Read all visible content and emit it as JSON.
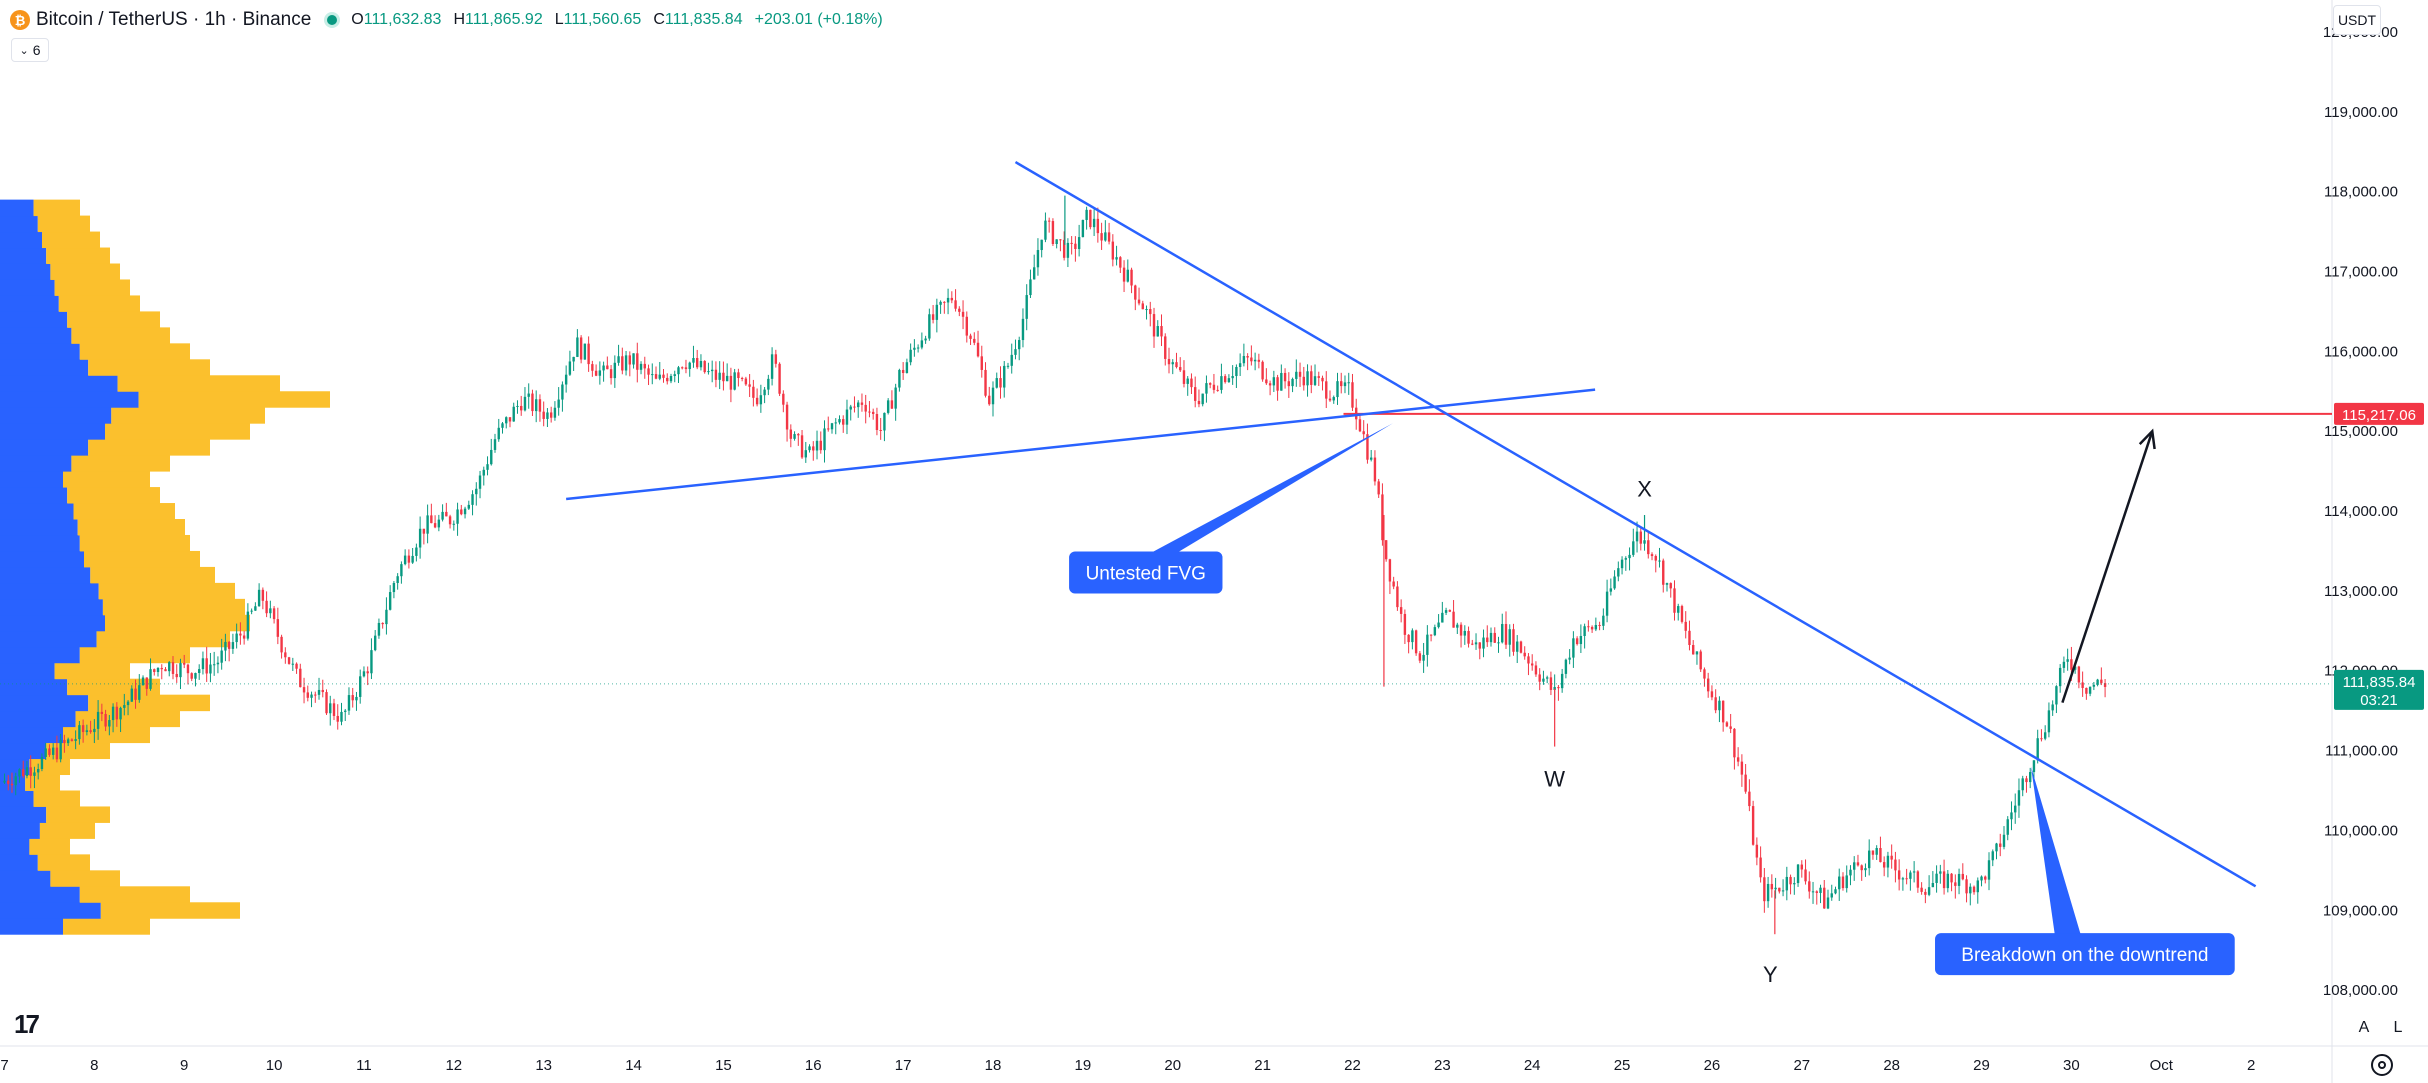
{
  "header": {
    "symbol": "Bitcoin / TetherUS · 1h · Binance",
    "open_label": "O",
    "open": "111,632.83",
    "high_label": "H",
    "high": "111,865.92",
    "low_label": "L",
    "low": "111,560.65",
    "close_label": "C",
    "close": "111,835.84",
    "change": "+203.01 (+0.18%)",
    "indicator_count": "6",
    "currency": "USDT"
  },
  "bottom_buttons": {
    "auto": "A",
    "log": "L"
  },
  "colors": {
    "up": "#089981",
    "down": "#f23645",
    "trendline": "#2962ff",
    "resistance": "#f23645",
    "volume_up": "#2962ff",
    "volume_down": "#fbc02d",
    "label_bg": "#2962ff"
  },
  "chart_data": {
    "type": "candlestick",
    "y_axis": {
      "ticks": [
        "108,000.00",
        "109,000.00",
        "110,000.00",
        "111,000.00",
        "112,000.00",
        "113,000.00",
        "114,000.00",
        "115,000.00",
        "116,000.00",
        "117,000.00",
        "118,000.00",
        "119,000.00",
        "120,000.00"
      ],
      "tick_values": [
        108000,
        109000,
        110000,
        111000,
        112000,
        113000,
        114000,
        115000,
        116000,
        117000,
        118000,
        119000,
        120000
      ],
      "range": [
        107300,
        120400
      ]
    },
    "x_axis": {
      "labels": [
        "7",
        "8",
        "9",
        "10",
        "11",
        "12",
        "13",
        "14",
        "15",
        "16",
        "17",
        "18",
        "19",
        "20",
        "21",
        "22",
        "23",
        "24",
        "25",
        "26",
        "27",
        "28",
        "29",
        "30",
        "Oct",
        "2"
      ],
      "day_index": [
        0,
        1,
        2,
        3,
        4,
        5,
        6,
        7,
        8,
        9,
        10,
        11,
        12,
        13,
        14,
        15,
        16,
        17,
        18,
        19,
        20,
        21,
        22,
        23,
        24,
        25
      ],
      "range": [
        -0.05,
        25.9
      ]
    },
    "price_path": [
      [
        0.0,
        110600
      ],
      [
        0.5,
        110900
      ],
      [
        1.0,
        111300
      ],
      [
        1.4,
        111600
      ],
      [
        1.8,
        112100
      ],
      [
        2.1,
        112000
      ],
      [
        2.4,
        112100
      ],
      [
        2.7,
        112500
      ],
      [
        2.9,
        112950
      ],
      [
        3.1,
        112400
      ],
      [
        3.3,
        111900
      ],
      [
        3.5,
        111700
      ],
      [
        3.8,
        111400
      ],
      [
        4.1,
        112100
      ],
      [
        4.4,
        113200
      ],
      [
        4.7,
        113800
      ],
      [
        5.0,
        113900
      ],
      [
        5.3,
        114300
      ],
      [
        5.5,
        114900
      ],
      [
        5.8,
        115400
      ],
      [
        6.1,
        115200
      ],
      [
        6.4,
        116100
      ],
      [
        6.7,
        115700
      ],
      [
        7.0,
        115900
      ],
      [
        7.3,
        115600
      ],
      [
        7.6,
        115900
      ],
      [
        7.9,
        115700
      ],
      [
        8.2,
        115600
      ],
      [
        8.4,
        115400
      ],
      [
        8.6,
        115900
      ],
      [
        8.8,
        114900
      ],
      [
        9.0,
        114700
      ],
      [
        9.3,
        115100
      ],
      [
        9.6,
        115400
      ],
      [
        9.8,
        115000
      ],
      [
        10.0,
        115700
      ],
      [
        10.3,
        116300
      ],
      [
        10.6,
        116700
      ],
      [
        10.8,
        116200
      ],
      [
        11.0,
        115400
      ],
      [
        11.2,
        115800
      ],
      [
        11.4,
        116500
      ],
      [
        11.6,
        117600
      ],
      [
        11.9,
        117200
      ],
      [
        12.1,
        117700
      ],
      [
        12.4,
        117200
      ],
      [
        12.7,
        116600
      ],
      [
        13.0,
        115900
      ],
      [
        13.3,
        115400
      ],
      [
        13.6,
        115700
      ],
      [
        13.9,
        115900
      ],
      [
        14.2,
        115600
      ],
      [
        14.5,
        115700
      ],
      [
        14.8,
        115500
      ],
      [
        15.0,
        115500
      ],
      [
        15.1,
        115200
      ],
      [
        15.3,
        114400
      ],
      [
        15.4,
        113500
      ],
      [
        15.6,
        112600
      ],
      [
        15.8,
        112200
      ],
      [
        16.1,
        112700
      ],
      [
        16.4,
        112300
      ],
      [
        16.7,
        112500
      ],
      [
        16.9,
        112300
      ],
      [
        17.1,
        112000
      ],
      [
        17.3,
        111700
      ],
      [
        17.5,
        112400
      ],
      [
        17.8,
        112600
      ],
      [
        18.0,
        113300
      ],
      [
        18.2,
        113700
      ],
      [
        18.4,
        113500
      ],
      [
        18.6,
        112900
      ],
      [
        18.8,
        112300
      ],
      [
        19.0,
        111800
      ],
      [
        19.2,
        111400
      ],
      [
        19.4,
        110600
      ],
      [
        19.6,
        109200
      ],
      [
        19.8,
        109300
      ],
      [
        20.0,
        109500
      ],
      [
        20.3,
        109100
      ],
      [
        20.5,
        109400
      ],
      [
        20.8,
        109700
      ],
      [
        21.1,
        109500
      ],
      [
        21.4,
        109300
      ],
      [
        21.7,
        109400
      ],
      [
        22.0,
        109300
      ],
      [
        22.2,
        109700
      ],
      [
        22.4,
        110300
      ],
      [
        22.6,
        110900
      ],
      [
        22.8,
        111500
      ],
      [
        23.0,
        112200
      ],
      [
        23.2,
        111800
      ],
      [
        23.4,
        111850
      ]
    ],
    "wick_extremes": [
      {
        "x": 15.35,
        "price": 111800,
        "kind": "low"
      },
      {
        "x": 17.25,
        "price": 111050,
        "kind": "low"
      },
      {
        "x": 19.7,
        "price": 108700,
        "kind": "low"
      },
      {
        "x": 11.8,
        "price": 117950,
        "kind": "high"
      },
      {
        "x": 18.25,
        "price": 113950,
        "kind": "high"
      }
    ],
    "last_price": {
      "value": 111835.84,
      "label": "111,835.84",
      "countdown": "03:21"
    },
    "horizontal_level": {
      "value": 115217.06,
      "label": "115,217.06",
      "x_start": 14.9,
      "x_end": 25.9
    },
    "trendlines": [
      {
        "name": "downtrend",
        "points": [
          [
            11.25,
            118370
          ],
          [
            25.05,
            109300
          ]
        ]
      },
      {
        "name": "support",
        "points": [
          [
            6.25,
            114150
          ],
          [
            17.7,
            115520
          ]
        ]
      }
    ],
    "projection_arrow": {
      "from": [
        22.9,
        111600
      ],
      "to": [
        23.9,
        115000
      ]
    },
    "wave_labels": [
      {
        "text": "X",
        "x": 18.25,
        "price": 114180
      },
      {
        "text": "W",
        "x": 17.25,
        "price": 110550
      },
      {
        "text": "Y",
        "x": 19.65,
        "price": 108100
      }
    ],
    "callouts": [
      {
        "text": "Untested FVG",
        "x": 12.7,
        "price": 113230,
        "pointer_to": [
          15.45,
          115100
        ]
      },
      {
        "text": "Breakdown on the downtrend",
        "x": 23.15,
        "price": 108450,
        "pointer_to": [
          22.55,
          110800
        ]
      }
    ],
    "volume_profile": {
      "price_range": [
        108700,
        117900
      ],
      "bins": 46,
      "total_widths": [
        150,
        240,
        190,
        120,
        90,
        70,
        95,
        110,
        80,
        60,
        70,
        110,
        150,
        180,
        210,
        160,
        130,
        190,
        230,
        250,
        245,
        235,
        215,
        200,
        190,
        185,
        175,
        160,
        150,
        170,
        210,
        250,
        265,
        330,
        280,
        210,
        190,
        170,
        160,
        140,
        130,
        120,
        110,
        100,
        90,
        80
      ],
      "up_fraction": 0.42
    }
  }
}
